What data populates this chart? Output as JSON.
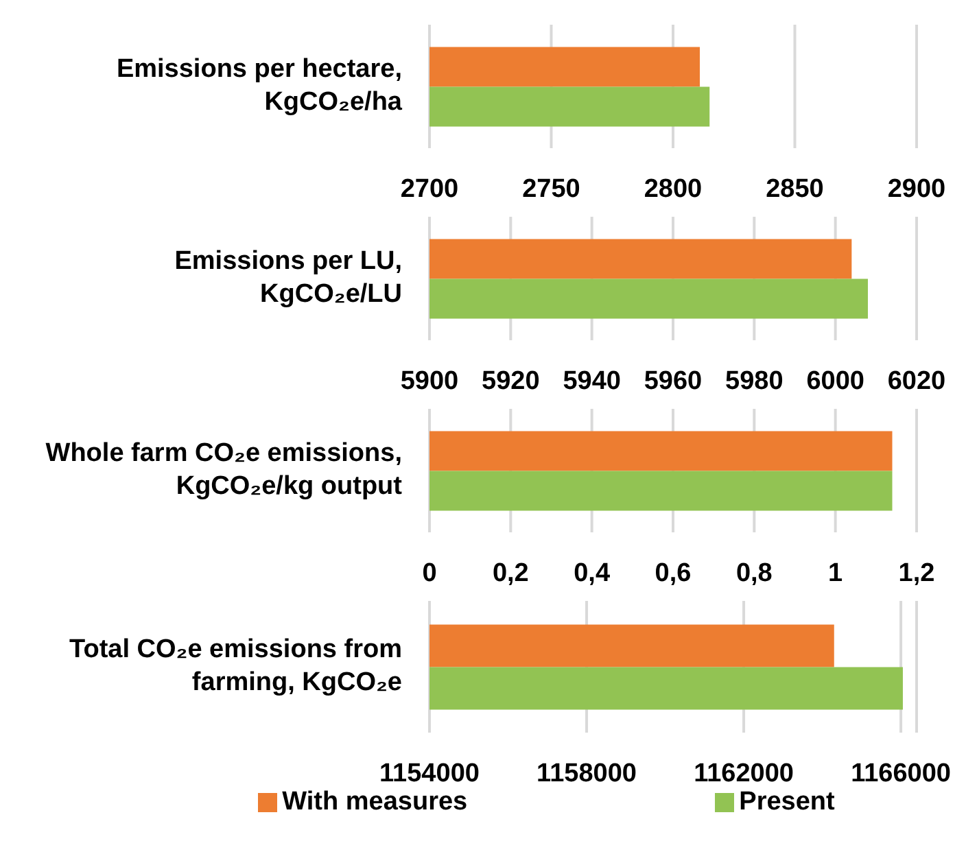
{
  "chart_data": [
    {
      "type": "bar",
      "orientation": "horizontal",
      "categories": [
        "Emissions per hectare, KgCO₂e/ha"
      ],
      "series": [
        {
          "color": "#ed7d31",
          "values": [
            2811
          ]
        },
        {
          "color": "#92c353",
          "values": [
            2815
          ]
        }
      ],
      "xlim": [
        2700,
        2900
      ],
      "xticks": [
        2700,
        2750,
        2800,
        2850,
        2900
      ],
      "grid": "x",
      "legend": false
    },
    {
      "type": "bar",
      "orientation": "horizontal",
      "categories": [
        "Emissions per LU, KgCO₂e/LU"
      ],
      "series": [
        {
          "color": "#ed7d31",
          "values": [
            6004
          ]
        },
        {
          "color": "#92c353",
          "values": [
            6008
          ]
        }
      ],
      "xlim": [
        5900,
        6020
      ],
      "xticks": [
        5900,
        5920,
        5940,
        5960,
        5980,
        6000,
        6020
      ],
      "grid": "x",
      "legend": false
    },
    {
      "type": "bar",
      "orientation": "horizontal",
      "categories": [
        "Whole farm CO₂e emissions, KgCO₂e/kg output"
      ],
      "series": [
        {
          "color": "#ed7d31",
          "values": [
            1.14
          ]
        },
        {
          "color": "#92c353",
          "values": [
            1.14
          ]
        }
      ],
      "xlim": [
        0,
        1.2
      ],
      "xticks": [
        0,
        {
          "value": 0.2,
          "label": "0,2"
        },
        {
          "value": 0.4,
          "label": "0,4"
        },
        {
          "value": 0.6,
          "label": "0,6"
        },
        {
          "value": 0.8,
          "label": "0,8"
        },
        1,
        {
          "value": 1.2,
          "label": "1,2"
        }
      ],
      "grid": "x",
      "legend": false
    },
    {
      "type": "bar",
      "orientation": "horizontal",
      "categories": [
        "Total CO₂e emissions from farming, KgCO₂e"
      ],
      "series": [
        {
          "name": "With measures",
          "color": "#ed7d31",
          "values": [
            1164300
          ]
        },
        {
          "name": "Present",
          "color": "#92c353",
          "values": [
            1166050
          ]
        }
      ],
      "xlim": [
        1154000,
        1166400
      ],
      "xticks": [
        1154000,
        1158000,
        1162000,
        1166000
      ],
      "grid": "x",
      "legend": "bottom"
    }
  ]
}
